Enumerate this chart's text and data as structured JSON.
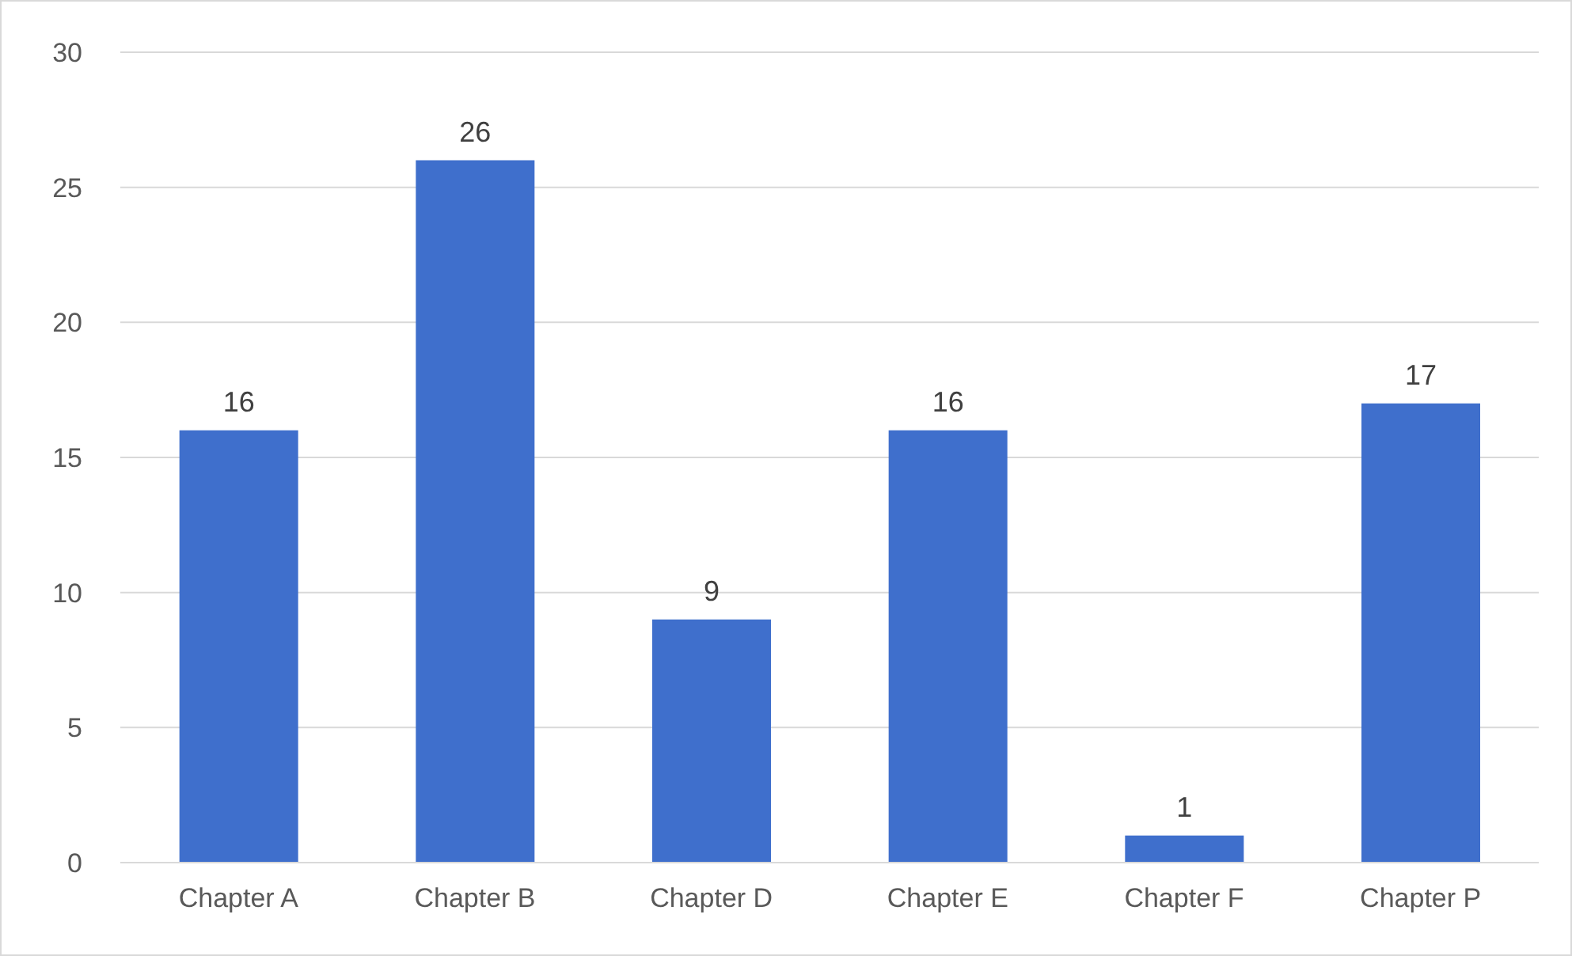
{
  "chart_data": {
    "type": "bar",
    "categories": [
      "Chapter A",
      "Chapter B",
      "Chapter D",
      "Chapter E",
      "Chapter F",
      "Chapter P"
    ],
    "values": [
      16,
      26,
      9,
      16,
      1,
      17
    ],
    "color": "#3f6fcc",
    "ylim": [
      0,
      30
    ],
    "yticks": [
      0,
      5,
      10,
      15,
      20,
      25,
      30
    ],
    "grid": "y",
    "data_labels": true
  }
}
